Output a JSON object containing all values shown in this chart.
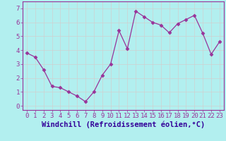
{
  "x": [
    0,
    1,
    2,
    3,
    4,
    5,
    6,
    7,
    8,
    9,
    10,
    11,
    12,
    13,
    14,
    15,
    16,
    17,
    18,
    19,
    20,
    21,
    22,
    23
  ],
  "y": [
    3.8,
    3.5,
    2.6,
    1.4,
    1.3,
    1.0,
    0.7,
    0.3,
    1.0,
    2.2,
    3.0,
    5.4,
    4.1,
    6.8,
    6.4,
    6.0,
    5.8,
    5.25,
    5.9,
    6.2,
    6.5,
    5.2,
    3.7,
    4.6
  ],
  "line_color": "#993399",
  "marker": "D",
  "marker_size": 2.5,
  "xlabel": "Windchill (Refroidissement éolien,°C)",
  "xlim": [
    -0.5,
    23.5
  ],
  "ylim": [
    -0.3,
    7.5
  ],
  "xtick_labels": [
    "0",
    "1",
    "2",
    "3",
    "4",
    "5",
    "6",
    "7",
    "8",
    "9",
    "10",
    "11",
    "12",
    "13",
    "14",
    "15",
    "16",
    "17",
    "18",
    "19",
    "20",
    "21",
    "22",
    "23"
  ],
  "ytick_values": [
    0,
    1,
    2,
    3,
    4,
    5,
    6,
    7
  ],
  "background_color": "#b2efef",
  "grid_color": "#d0d0d0",
  "xlabel_fontsize": 7.5,
  "tick_fontsize": 6.5,
  "line_color_hex": "#993399",
  "xlabel_color": "#330099",
  "tick_color": "#993399",
  "spine_color": "#993399",
  "linewidth": 0.9
}
